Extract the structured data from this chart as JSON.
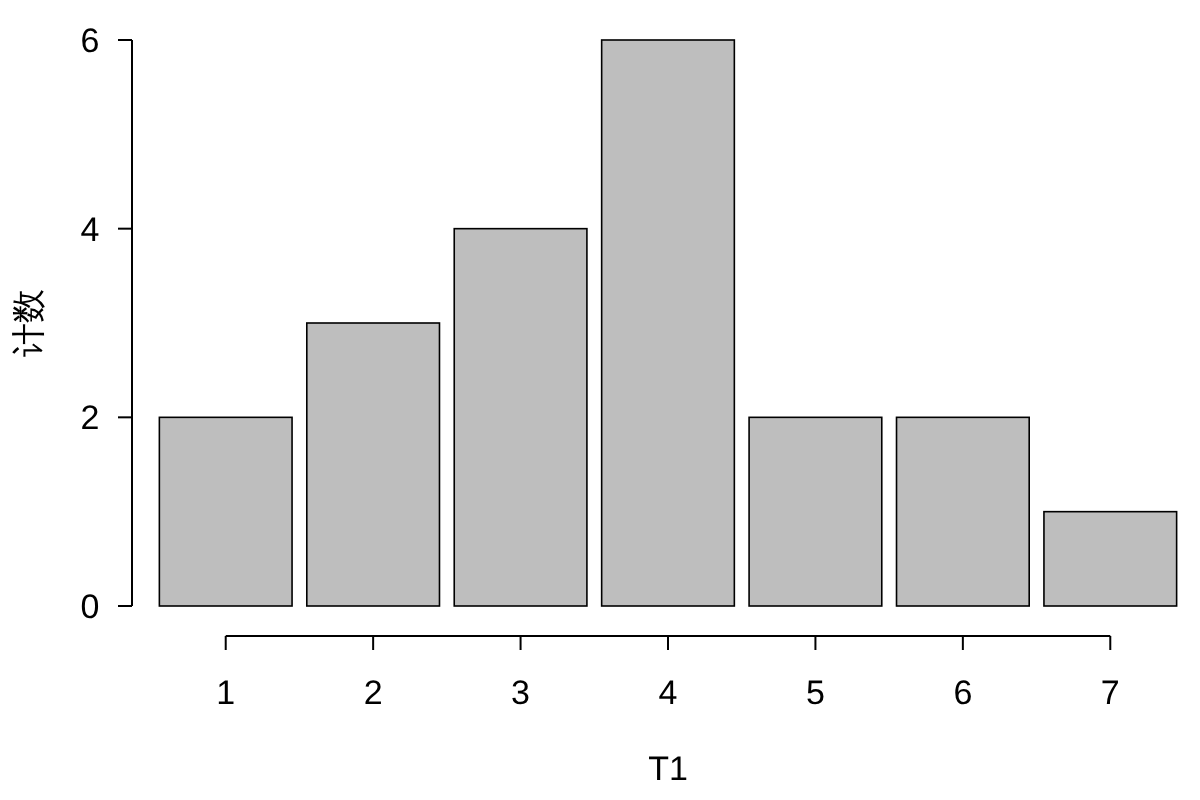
{
  "chart_data": {
    "type": "bar",
    "xlabel": "T1",
    "ylabel": "计数",
    "categories": [
      "1",
      "2",
      "3",
      "4",
      "5",
      "6",
      "7"
    ],
    "values": [
      2,
      3,
      4,
      6,
      2,
      2,
      1
    ],
    "color": "#bebebe",
    "ylim": [
      0,
      6
    ],
    "yticks": [
      0,
      2,
      4,
      6
    ]
  }
}
